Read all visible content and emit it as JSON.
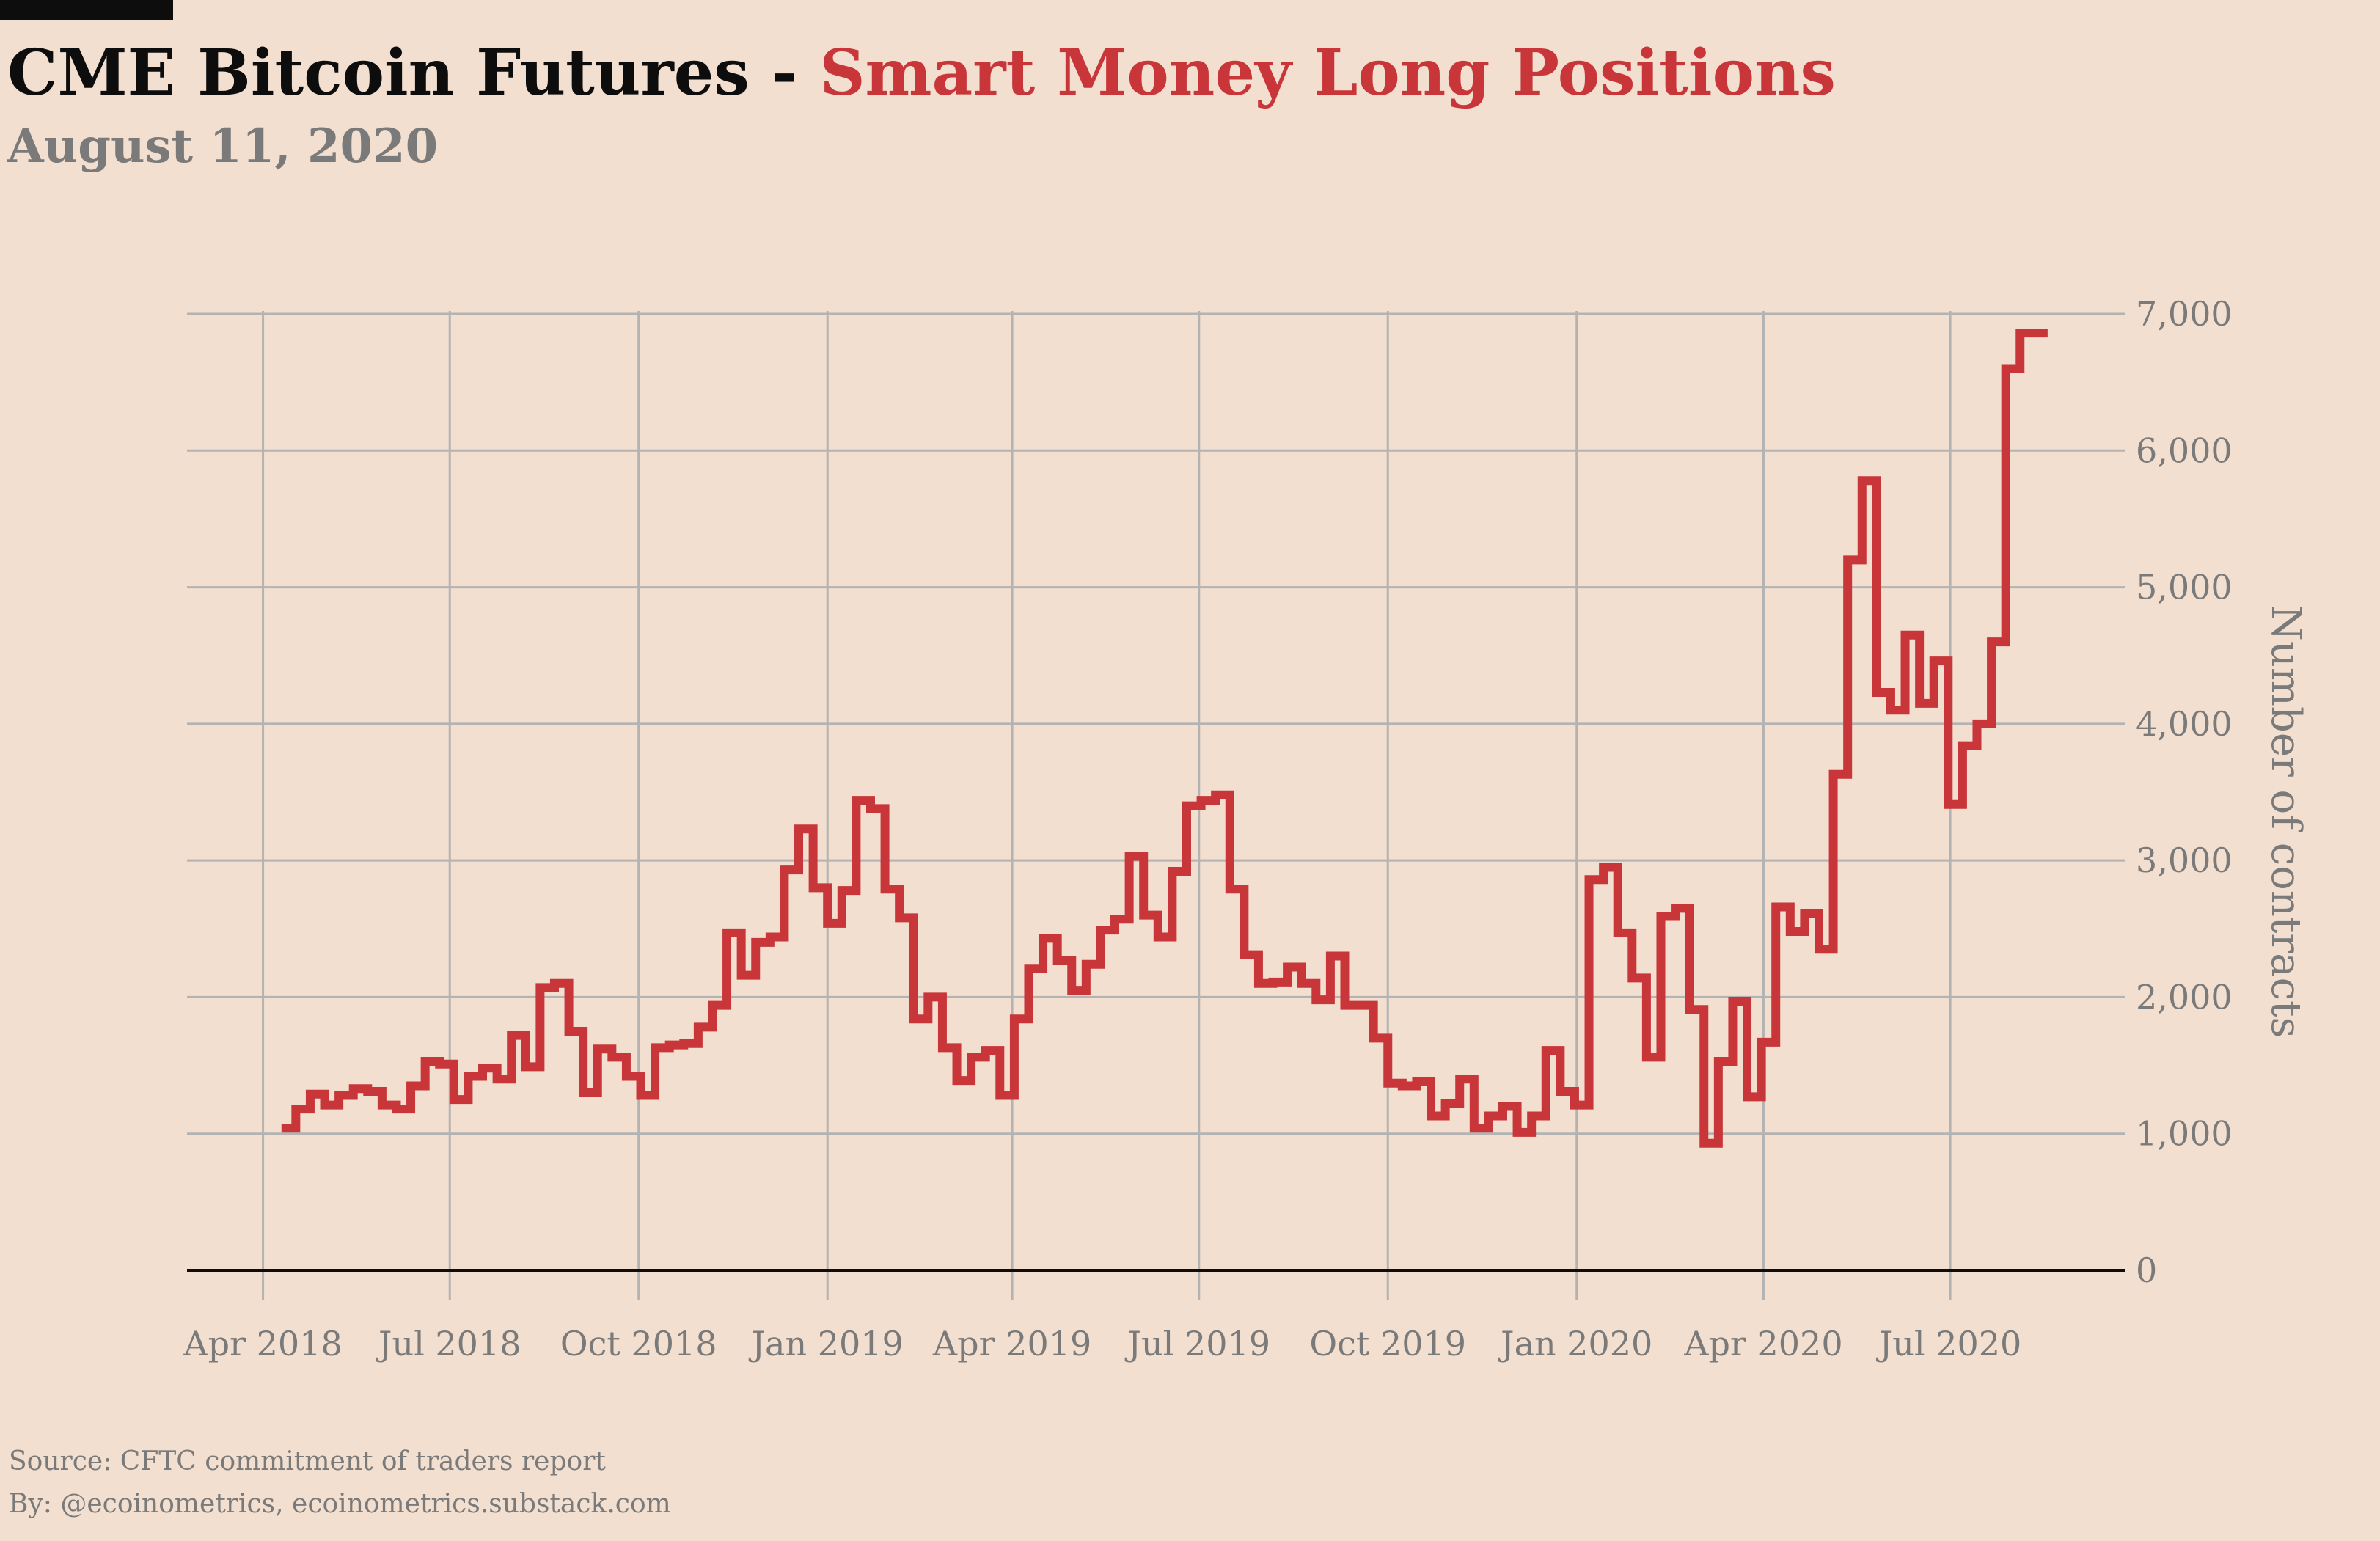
{
  "header": {
    "title_prefix": "CME Bitcoin Futures -",
    "title_highlight": "Smart Money Long Positions",
    "subtitle": "August 11, 2020"
  },
  "footer": {
    "source": "Source: CFTC commitment of traders report",
    "byline": "By: @ecoinometrics, ecoinometrics.substack.com"
  },
  "colors": {
    "background": "#f2dfcf",
    "line": "#c8363a",
    "grid": "#b3b3b3",
    "axis_text": "#7a7a7a",
    "zero_line": "#0d0d0d"
  },
  "chart_data": {
    "type": "line",
    "step": true,
    "title": "CME Bitcoin Futures - Smart Money Long Positions",
    "subtitle": "August 11, 2020",
    "xlabel": "",
    "ylabel": "Number of contracts",
    "y_axis_side": "right",
    "grid": true,
    "ylim": [
      0,
      7000
    ],
    "xlim": [
      "2018-02-23",
      "2020-09-24"
    ],
    "x_ticks": [
      {
        "date": "2018-04-01",
        "label": "Apr 2018"
      },
      {
        "date": "2018-07-01",
        "label": "Jul 2018"
      },
      {
        "date": "2018-10-01",
        "label": "Oct 2018"
      },
      {
        "date": "2019-01-01",
        "label": "Jan 2019"
      },
      {
        "date": "2019-04-01",
        "label": "Apr 2019"
      },
      {
        "date": "2019-07-01",
        "label": "Jul 2019"
      },
      {
        "date": "2019-10-01",
        "label": "Oct 2019"
      },
      {
        "date": "2020-01-01",
        "label": "Jan 2020"
      },
      {
        "date": "2020-04-01",
        "label": "Apr 2020"
      },
      {
        "date": "2020-07-01",
        "label": "Jul 2020"
      }
    ],
    "y_ticks": [
      {
        "value": 0,
        "label": "0"
      },
      {
        "value": 1000,
        "label": "1,000"
      },
      {
        "value": 2000,
        "label": "2,000"
      },
      {
        "value": 3000,
        "label": "3,000"
      },
      {
        "value": 4000,
        "label": "4,000"
      },
      {
        "value": 5000,
        "label": "5,000"
      },
      {
        "value": 6000,
        "label": "6,000"
      },
      {
        "value": 7000,
        "label": "7,000"
      }
    ],
    "series": [
      {
        "values": [
          {
            "x": "2018-04-10",
            "y": 1040
          },
          {
            "x": "2018-04-17",
            "y": 1180
          },
          {
            "x": "2018-04-24",
            "y": 1290
          },
          {
            "x": "2018-05-01",
            "y": 1210
          },
          {
            "x": "2018-05-08",
            "y": 1280
          },
          {
            "x": "2018-05-15",
            "y": 1330
          },
          {
            "x": "2018-05-22",
            "y": 1310
          },
          {
            "x": "2018-05-29",
            "y": 1210
          },
          {
            "x": "2018-06-05",
            "y": 1180
          },
          {
            "x": "2018-06-12",
            "y": 1350
          },
          {
            "x": "2018-06-19",
            "y": 1530
          },
          {
            "x": "2018-06-26",
            "y": 1510
          },
          {
            "x": "2018-07-03",
            "y": 1250
          },
          {
            "x": "2018-07-10",
            "y": 1420
          },
          {
            "x": "2018-07-17",
            "y": 1480
          },
          {
            "x": "2018-07-24",
            "y": 1400
          },
          {
            "x": "2018-07-31",
            "y": 1720
          },
          {
            "x": "2018-08-07",
            "y": 1490
          },
          {
            "x": "2018-08-14",
            "y": 2070
          },
          {
            "x": "2018-08-21",
            "y": 2100
          },
          {
            "x": "2018-08-28",
            "y": 1750
          },
          {
            "x": "2018-09-04",
            "y": 1300
          },
          {
            "x": "2018-09-11",
            "y": 1620
          },
          {
            "x": "2018-09-18",
            "y": 1560
          },
          {
            "x": "2018-09-25",
            "y": 1420
          },
          {
            "x": "2018-10-02",
            "y": 1280
          },
          {
            "x": "2018-10-09",
            "y": 1630
          },
          {
            "x": "2018-10-16",
            "y": 1650
          },
          {
            "x": "2018-10-23",
            "y": 1660
          },
          {
            "x": "2018-10-30",
            "y": 1780
          },
          {
            "x": "2018-11-06",
            "y": 1940
          },
          {
            "x": "2018-11-13",
            "y": 2470
          },
          {
            "x": "2018-11-20",
            "y": 2160
          },
          {
            "x": "2018-11-27",
            "y": 2400
          },
          {
            "x": "2018-12-04",
            "y": 2440
          },
          {
            "x": "2018-12-11",
            "y": 2930
          },
          {
            "x": "2018-12-18",
            "y": 3230
          },
          {
            "x": "2018-12-25",
            "y": 2800
          },
          {
            "x": "2019-01-01",
            "y": 2540
          },
          {
            "x": "2019-01-08",
            "y": 2780
          },
          {
            "x": "2019-01-15",
            "y": 3440
          },
          {
            "x": "2019-01-22",
            "y": 3380
          },
          {
            "x": "2019-01-29",
            "y": 2790
          },
          {
            "x": "2019-02-05",
            "y": 2580
          },
          {
            "x": "2019-02-12",
            "y": 1840
          },
          {
            "x": "2019-02-19",
            "y": 2000
          },
          {
            "x": "2019-02-26",
            "y": 1630
          },
          {
            "x": "2019-03-05",
            "y": 1390
          },
          {
            "x": "2019-03-12",
            "y": 1560
          },
          {
            "x": "2019-03-19",
            "y": 1610
          },
          {
            "x": "2019-03-26",
            "y": 1280
          },
          {
            "x": "2019-04-02",
            "y": 1840
          },
          {
            "x": "2019-04-09",
            "y": 2210
          },
          {
            "x": "2019-04-16",
            "y": 2430
          },
          {
            "x": "2019-04-23",
            "y": 2270
          },
          {
            "x": "2019-04-30",
            "y": 2050
          },
          {
            "x": "2019-05-07",
            "y": 2240
          },
          {
            "x": "2019-05-14",
            "y": 2490
          },
          {
            "x": "2019-05-21",
            "y": 2570
          },
          {
            "x": "2019-05-28",
            "y": 3030
          },
          {
            "x": "2019-06-04",
            "y": 2600
          },
          {
            "x": "2019-06-11",
            "y": 2440
          },
          {
            "x": "2019-06-18",
            "y": 2920
          },
          {
            "x": "2019-06-25",
            "y": 3400
          },
          {
            "x": "2019-07-02",
            "y": 3440
          },
          {
            "x": "2019-07-09",
            "y": 3480
          },
          {
            "x": "2019-07-16",
            "y": 2790
          },
          {
            "x": "2019-07-23",
            "y": 2310
          },
          {
            "x": "2019-07-30",
            "y": 2100
          },
          {
            "x": "2019-08-06",
            "y": 2110
          },
          {
            "x": "2019-08-13",
            "y": 2220
          },
          {
            "x": "2019-08-20",
            "y": 2100
          },
          {
            "x": "2019-08-27",
            "y": 1980
          },
          {
            "x": "2019-09-03",
            "y": 2300
          },
          {
            "x": "2019-09-10",
            "y": 1940
          },
          {
            "x": "2019-09-17",
            "y": 1940
          },
          {
            "x": "2019-09-24",
            "y": 1700
          },
          {
            "x": "2019-10-01",
            "y": 1370
          },
          {
            "x": "2019-10-08",
            "y": 1350
          },
          {
            "x": "2019-10-15",
            "y": 1380
          },
          {
            "x": "2019-10-22",
            "y": 1130
          },
          {
            "x": "2019-10-29",
            "y": 1220
          },
          {
            "x": "2019-11-05",
            "y": 1400
          },
          {
            "x": "2019-11-12",
            "y": 1040
          },
          {
            "x": "2019-11-19",
            "y": 1130
          },
          {
            "x": "2019-11-26",
            "y": 1200
          },
          {
            "x": "2019-12-03",
            "y": 1010
          },
          {
            "x": "2019-12-10",
            "y": 1130
          },
          {
            "x": "2019-12-17",
            "y": 1610
          },
          {
            "x": "2019-12-24",
            "y": 1310
          },
          {
            "x": "2019-12-31",
            "y": 1210
          },
          {
            "x": "2020-01-07",
            "y": 2860
          },
          {
            "x": "2020-01-14",
            "y": 2950
          },
          {
            "x": "2020-01-21",
            "y": 2470
          },
          {
            "x": "2020-01-28",
            "y": 2140
          },
          {
            "x": "2020-02-04",
            "y": 1560
          },
          {
            "x": "2020-02-11",
            "y": 2590
          },
          {
            "x": "2020-02-18",
            "y": 2650
          },
          {
            "x": "2020-02-25",
            "y": 1910
          },
          {
            "x": "2020-03-03",
            "y": 930
          },
          {
            "x": "2020-03-10",
            "y": 1530
          },
          {
            "x": "2020-03-17",
            "y": 1970
          },
          {
            "x": "2020-03-24",
            "y": 1270
          },
          {
            "x": "2020-03-31",
            "y": 1670
          },
          {
            "x": "2020-04-07",
            "y": 2660
          },
          {
            "x": "2020-04-14",
            "y": 2480
          },
          {
            "x": "2020-04-21",
            "y": 2610
          },
          {
            "x": "2020-04-28",
            "y": 2350
          },
          {
            "x": "2020-05-05",
            "y": 3630
          },
          {
            "x": "2020-05-12",
            "y": 5200
          },
          {
            "x": "2020-05-19",
            "y": 5780
          },
          {
            "x": "2020-05-26",
            "y": 4230
          },
          {
            "x": "2020-06-02",
            "y": 4100
          },
          {
            "x": "2020-06-09",
            "y": 4650
          },
          {
            "x": "2020-06-16",
            "y": 4150
          },
          {
            "x": "2020-06-23",
            "y": 4460
          },
          {
            "x": "2020-06-30",
            "y": 3410
          },
          {
            "x": "2020-07-07",
            "y": 3840
          },
          {
            "x": "2020-07-14",
            "y": 4000
          },
          {
            "x": "2020-07-21",
            "y": 4600
          },
          {
            "x": "2020-07-28",
            "y": 6600
          },
          {
            "x": "2020-08-04",
            "y": 6860
          },
          {
            "x": "2020-08-11",
            "y": 6860
          }
        ]
      }
    ]
  }
}
